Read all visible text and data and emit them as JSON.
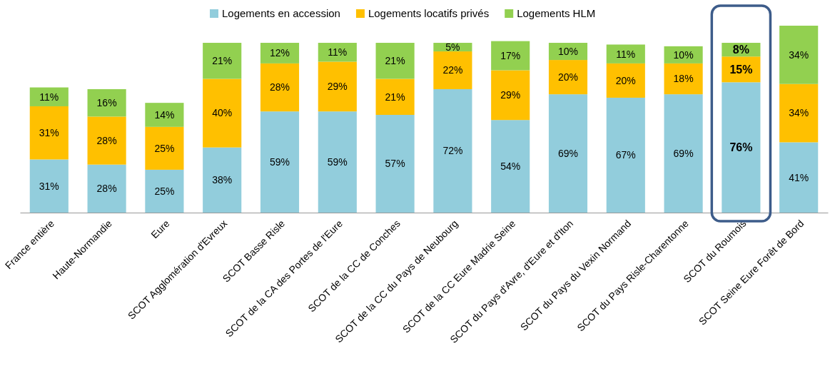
{
  "chart_data": {
    "type": "bar",
    "stacked": true,
    "legend": "top",
    "categories": [
      "France entière",
      "Haute-Normandie",
      "Eure",
      "SCOT Agglomération d'Evreux",
      "SCOT Basse Risle",
      "SCOT de la CA des Portes de l'Eure",
      "SCOT de la CC de Conches",
      "SCOT de la CC du Pays de Neubourg",
      "SCOT de la CC Eure Madrie Seine",
      "SCOT du Pays d'Avre, d'Eure et d'Iton",
      "SCOT du Pays du Vexin Normand",
      "SCOT du Pays Risle-Charentonne",
      "SCOT du Roumois",
      "SCOT Seine Eure Forêt de Bord"
    ],
    "series": [
      {
        "name": "Logements en accession",
        "color": "#92cddc",
        "values": [
          31,
          28,
          25,
          38,
          59,
          59,
          57,
          72,
          54,
          69,
          67,
          69,
          76,
          41
        ],
        "value_labels": [
          "31%",
          "28%",
          "25%",
          "38%",
          "59%",
          "59%",
          "57%",
          "72%",
          "54%",
          "69%",
          "67%",
          "69%",
          "76%",
          "41%"
        ]
      },
      {
        "name": "Logements locatifs privés",
        "color": "#ffc000",
        "values": [
          31,
          28,
          25,
          40,
          28,
          29,
          21,
          22,
          29,
          20,
          20,
          18,
          15,
          34
        ],
        "value_labels": [
          "31%",
          "28%",
          "25%",
          "40%",
          "28%",
          "29%",
          "21%",
          "22%",
          "29%",
          "20%",
          "20%",
          "18%",
          "15%",
          "34%"
        ]
      },
      {
        "name": "Logements HLM",
        "color": "#92d050",
        "values": [
          11,
          16,
          14,
          21,
          12,
          11,
          21,
          5,
          17,
          10,
          11,
          10,
          8,
          34
        ],
        "value_labels": [
          "11%",
          "16%",
          "14%",
          "21%",
          "12%",
          "11%",
          "21%",
          "5%",
          "17%",
          "10%",
          "11%",
          "10%",
          "8%",
          "34%"
        ]
      }
    ]
  }
}
